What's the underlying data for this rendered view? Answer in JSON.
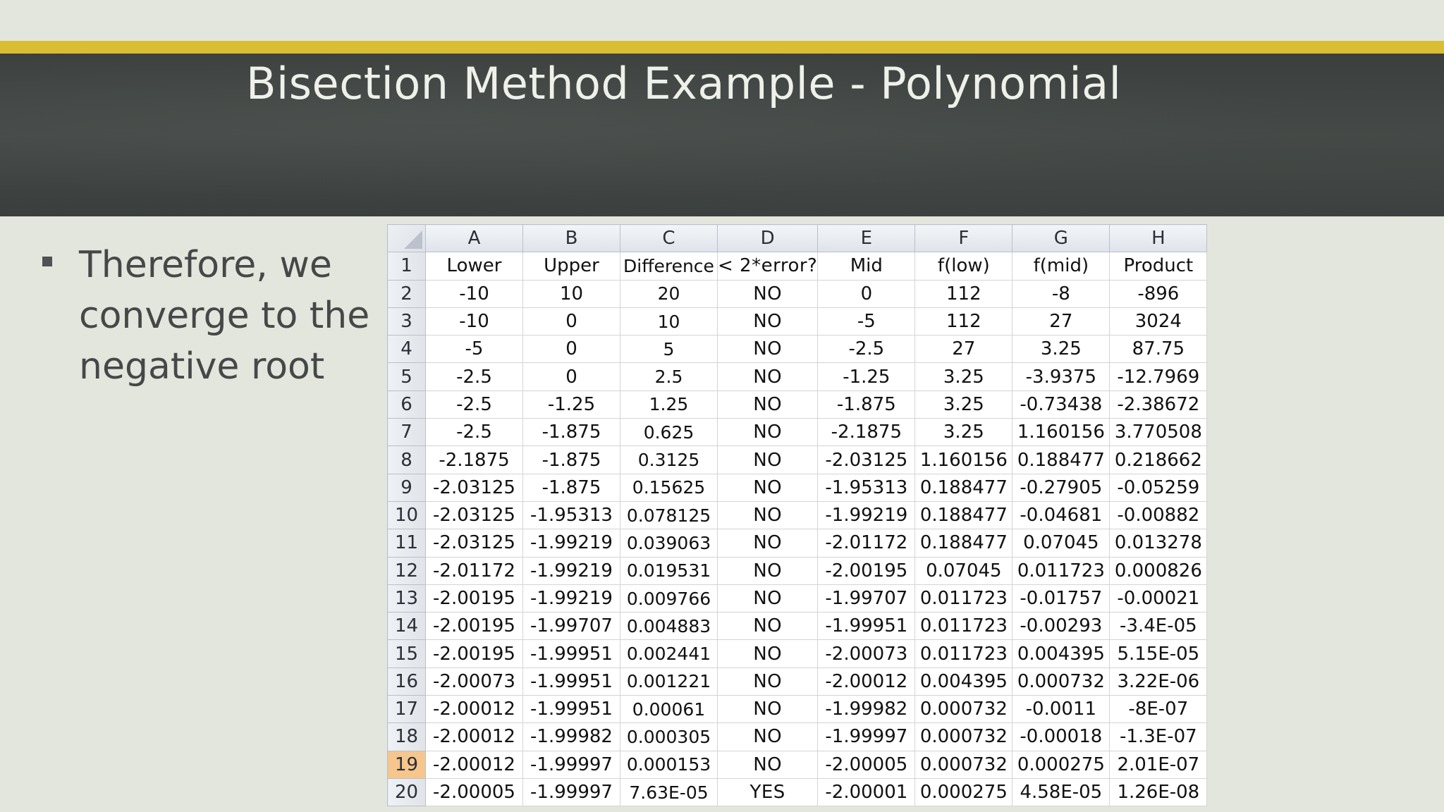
{
  "slide": {
    "title": "Bisection Method Example - Polynomial",
    "bullet": "Therefore, we converge to the negative root"
  },
  "colors": {
    "gold_bar": "#d9bd33",
    "title_band": "#40453f",
    "background": "#e3e6dc",
    "active_row_header": "#f6c68c"
  },
  "spreadsheet": {
    "column_letters": [
      "A",
      "B",
      "C",
      "D",
      "E",
      "F",
      "G",
      "H"
    ],
    "selected_row": "19",
    "rows": [
      {
        "num": "1",
        "cells": [
          "Lower",
          "Upper",
          "Difference",
          "< 2*error?",
          "Mid",
          "f(low)",
          "f(mid)",
          "Product"
        ]
      },
      {
        "num": "2",
        "cells": [
          "-10",
          "10",
          "20",
          "NO",
          "0",
          "112",
          "-8",
          "-896"
        ]
      },
      {
        "num": "3",
        "cells": [
          "-10",
          "0",
          "10",
          "NO",
          "-5",
          "112",
          "27",
          "3024"
        ]
      },
      {
        "num": "4",
        "cells": [
          "-5",
          "0",
          "5",
          "NO",
          "-2.5",
          "27",
          "3.25",
          "87.75"
        ]
      },
      {
        "num": "5",
        "cells": [
          "-2.5",
          "0",
          "2.5",
          "NO",
          "-1.25",
          "3.25",
          "-3.9375",
          "-12.7969"
        ]
      },
      {
        "num": "6",
        "cells": [
          "-2.5",
          "-1.25",
          "1.25",
          "NO",
          "-1.875",
          "3.25",
          "-0.73438",
          "-2.38672"
        ]
      },
      {
        "num": "7",
        "cells": [
          "-2.5",
          "-1.875",
          "0.625",
          "NO",
          "-2.1875",
          "3.25",
          "1.160156",
          "3.770508"
        ]
      },
      {
        "num": "8",
        "cells": [
          "-2.1875",
          "-1.875",
          "0.3125",
          "NO",
          "-2.03125",
          "1.160156",
          "0.188477",
          "0.218662"
        ]
      },
      {
        "num": "9",
        "cells": [
          "-2.03125",
          "-1.875",
          "0.15625",
          "NO",
          "-1.95313",
          "0.188477",
          "-0.27905",
          "-0.05259"
        ]
      },
      {
        "num": "10",
        "cells": [
          "-2.03125",
          "-1.95313",
          "0.078125",
          "NO",
          "-1.99219",
          "0.188477",
          "-0.04681",
          "-0.00882"
        ]
      },
      {
        "num": "11",
        "cells": [
          "-2.03125",
          "-1.99219",
          "0.039063",
          "NO",
          "-2.01172",
          "0.188477",
          "0.07045",
          "0.013278"
        ]
      },
      {
        "num": "12",
        "cells": [
          "-2.01172",
          "-1.99219",
          "0.019531",
          "NO",
          "-2.00195",
          "0.07045",
          "0.011723",
          "0.000826"
        ]
      },
      {
        "num": "13",
        "cells": [
          "-2.00195",
          "-1.99219",
          "0.009766",
          "NO",
          "-1.99707",
          "0.011723",
          "-0.01757",
          "-0.00021"
        ]
      },
      {
        "num": "14",
        "cells": [
          "-2.00195",
          "-1.99707",
          "0.004883",
          "NO",
          "-1.99951",
          "0.011723",
          "-0.00293",
          "-3.4E-05"
        ]
      },
      {
        "num": "15",
        "cells": [
          "-2.00195",
          "-1.99951",
          "0.002441",
          "NO",
          "-2.00073",
          "0.011723",
          "0.004395",
          "5.15E-05"
        ]
      },
      {
        "num": "16",
        "cells": [
          "-2.00073",
          "-1.99951",
          "0.001221",
          "NO",
          "-2.00012",
          "0.004395",
          "0.000732",
          "3.22E-06"
        ]
      },
      {
        "num": "17",
        "cells": [
          "-2.00012",
          "-1.99951",
          "0.00061",
          "NO",
          "-1.99982",
          "0.000732",
          "-0.0011",
          "-8E-07"
        ]
      },
      {
        "num": "18",
        "cells": [
          "-2.00012",
          "-1.99982",
          "0.000305",
          "NO",
          "-1.99997",
          "0.000732",
          "-0.00018",
          "-1.3E-07"
        ]
      },
      {
        "num": "19",
        "cells": [
          "-2.00012",
          "-1.99997",
          "0.000153",
          "NO",
          "-2.00005",
          "0.000732",
          "0.000275",
          "2.01E-07"
        ]
      },
      {
        "num": "20",
        "cells": [
          "-2.00005",
          "-1.99997",
          "7.63E-05",
          "YES",
          "-2.00001",
          "0.000275",
          "4.58E-05",
          "1.26E-08"
        ]
      }
    ]
  }
}
